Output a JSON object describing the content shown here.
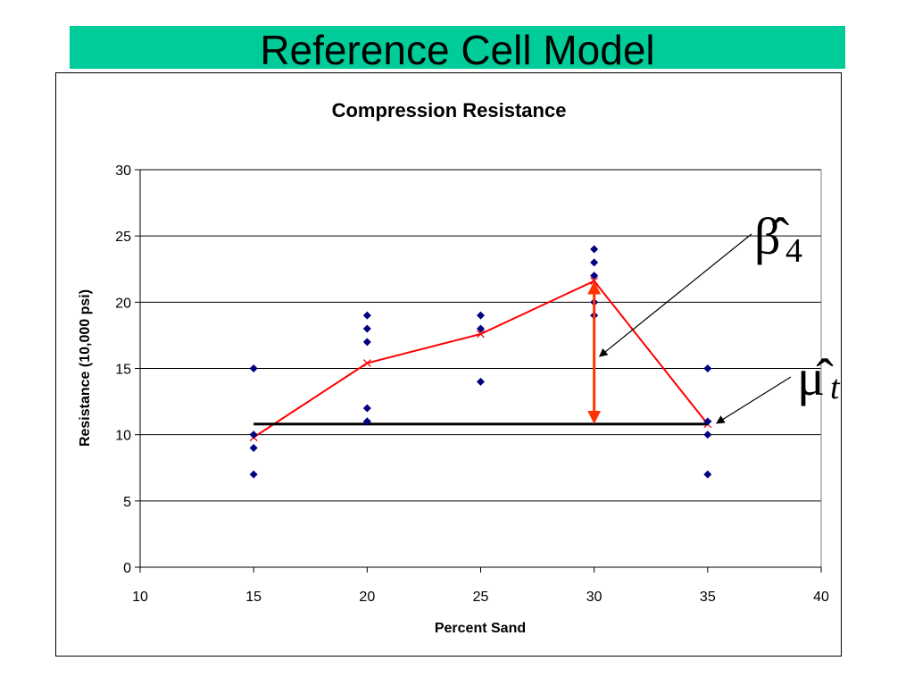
{
  "slide": {
    "title": "Reference Cell Model",
    "title_bar_color": "#00cc99"
  },
  "chart_data": {
    "type": "scatter",
    "title": "Compression Resistance",
    "xlabel": "Percent Sand",
    "ylabel": "Resistance (10,000 psi)",
    "xlim": [
      10,
      40
    ],
    "ylim": [
      0,
      30
    ],
    "x_ticks": [
      10,
      15,
      20,
      25,
      30,
      35,
      40
    ],
    "y_ticks": [
      0,
      5,
      10,
      15,
      20,
      25,
      30
    ],
    "grid": "horizontal",
    "legend": "none",
    "series": [
      {
        "type": "scatter",
        "color": "#000080",
        "marker": "diamond",
        "points": [
          [
            15,
            7
          ],
          [
            15,
            9
          ],
          [
            15,
            10
          ],
          [
            15,
            15
          ],
          [
            20,
            11
          ],
          [
            20,
            11
          ],
          [
            20,
            12
          ],
          [
            20,
            17
          ],
          [
            20,
            18
          ],
          [
            20,
            19
          ],
          [
            25,
            14
          ],
          [
            25,
            18
          ],
          [
            25,
            19
          ],
          [
            30,
            19
          ],
          [
            30,
            20
          ],
          [
            30,
            22
          ],
          [
            30,
            23
          ],
          [
            30,
            24
          ],
          [
            35,
            7
          ],
          [
            35,
            10
          ],
          [
            35,
            11
          ],
          [
            35,
            15
          ]
        ]
      },
      {
        "type": "line",
        "color": "#ff0000",
        "marker": "x",
        "points": [
          [
            15,
            9.8
          ],
          [
            20,
            15.4
          ],
          [
            25,
            17.6
          ],
          [
            30,
            21.6
          ],
          [
            35,
            10.8
          ]
        ]
      },
      {
        "type": "line",
        "color": "#000000",
        "marker": "none",
        "points": [
          [
            15,
            10.8
          ],
          [
            35,
            10.8
          ]
        ]
      }
    ],
    "annotations": [
      {
        "type": "double-arrow",
        "color": "#ff3300",
        "x": 30,
        "y_from": 10.8,
        "y_to": 21.6
      },
      {
        "label_symbol": "β̂",
        "label_subscript": "4",
        "target": [
          30,
          15.5
        ],
        "color": "#000000"
      },
      {
        "label_symbol": "μ̂",
        "label_subscript": "t",
        "target": [
          35,
          11
        ],
        "color": "#000000"
      }
    ]
  }
}
